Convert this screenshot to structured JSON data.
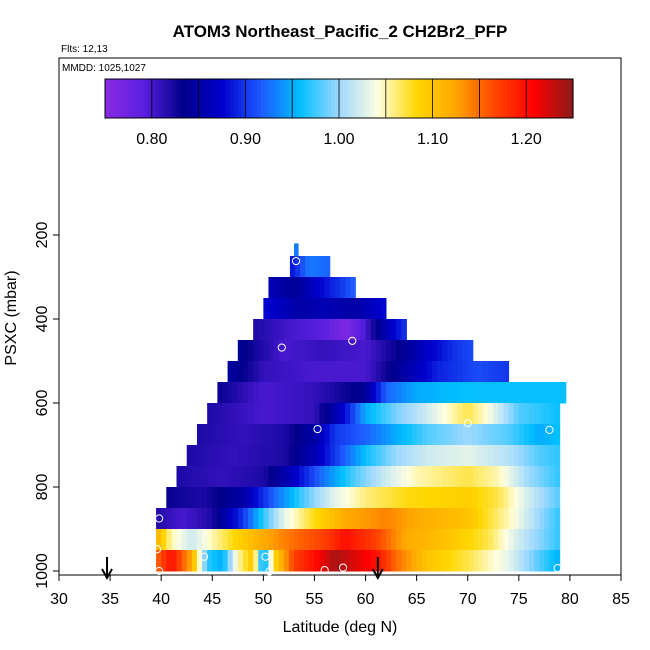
{
  "chart_data": {
    "type": "heatmap",
    "title": "ATOM3 Northeast_Pacific_2 CH2Br2_PFP",
    "flights_label": "Flts: 12,13",
    "mmdd_label": "MMDD: 1025,1027",
    "xlabel": "Latitude (deg N)",
    "ylabel": "PSXC (mbar)",
    "xlim": [
      30,
      85
    ],
    "ylim": [
      1000,
      220
    ],
    "x_ticks": [
      30,
      35,
      40,
      45,
      50,
      55,
      60,
      65,
      70,
      75,
      80,
      85
    ],
    "y_ticks": [
      200,
      400,
      600,
      800,
      1000
    ],
    "colorbar": {
      "range": [
        0.75,
        1.25
      ],
      "ticks": [
        0.8,
        0.9,
        1.0,
        1.1,
        1.2
      ],
      "tick_labels": [
        "0.80",
        "0.90",
        "1.00",
        "1.10",
        "1.20"
      ],
      "colors": [
        "#8a2be2",
        "#5a1fe0",
        "#00008b",
        "#0000cd",
        "#1e5aff",
        "#00bfff",
        "#9ed8ff",
        "#ffffe0",
        "#ffd700",
        "#ffa500",
        "#ff4500",
        "#ff0000",
        "#8b1a1a"
      ],
      "divisions": [
        0.8,
        0.85,
        0.9,
        0.95,
        1.0,
        1.05,
        1.1,
        1.15,
        1.2
      ]
    },
    "rows": [
      {
        "p0": 220,
        "p1": 250,
        "lat0": 53.0,
        "lat1": 53.4,
        "keys": [
          [
            53.0,
            0.93
          ]
        ]
      },
      {
        "p0": 250,
        "p1": 300,
        "lat0": 52.6,
        "lat1": 56.5,
        "keys": [
          [
            52.6,
            0.88
          ],
          [
            54.5,
            0.93
          ],
          [
            56.5,
            0.92
          ]
        ]
      },
      {
        "p0": 300,
        "p1": 350,
        "lat0": 50.5,
        "lat1": 59.0,
        "keys": [
          [
            50.5,
            0.86
          ],
          [
            53.0,
            0.84
          ],
          [
            55.0,
            0.87
          ],
          [
            57.5,
            0.9
          ],
          [
            59.0,
            0.92
          ]
        ]
      },
      {
        "p0": 350,
        "p1": 400,
        "lat0": 50.0,
        "lat1": 62.0,
        "keys": [
          [
            50.0,
            0.88
          ],
          [
            53.5,
            0.85
          ],
          [
            56.0,
            0.86
          ],
          [
            59.0,
            0.85
          ],
          [
            62.0,
            0.88
          ]
        ]
      },
      {
        "p0": 400,
        "p1": 450,
        "lat0": 49.0,
        "lat1": 64.0,
        "keys": [
          [
            49.0,
            0.82
          ],
          [
            53.0,
            0.8
          ],
          [
            56.0,
            0.79
          ],
          [
            58.0,
            0.76
          ],
          [
            60.0,
            0.8
          ],
          [
            62.0,
            0.86
          ],
          [
            64.0,
            0.9
          ]
        ]
      },
      {
        "p0": 450,
        "p1": 500,
        "lat0": 47.5,
        "lat1": 70.5,
        "keys": [
          [
            47.5,
            0.84
          ],
          [
            52.0,
            0.8
          ],
          [
            56.0,
            0.81
          ],
          [
            60.0,
            0.8
          ],
          [
            63.0,
            0.83
          ],
          [
            66.0,
            0.87
          ],
          [
            69.0,
            0.9
          ],
          [
            70.5,
            0.91
          ]
        ]
      },
      {
        "p0": 500,
        "p1": 550,
        "lat0": 46.5,
        "lat1": 74.0,
        "keys": [
          [
            46.5,
            0.85
          ],
          [
            50.0,
            0.81
          ],
          [
            55.0,
            0.8
          ],
          [
            60.0,
            0.8
          ],
          [
            63.0,
            0.84
          ],
          [
            67.0,
            0.89
          ],
          [
            71.0,
            0.91
          ],
          [
            74.0,
            0.9
          ]
        ]
      },
      {
        "p0": 550,
        "p1": 600,
        "lat0": 45.5,
        "lat1": 79.6,
        "keys": [
          [
            45.5,
            0.83
          ],
          [
            50.0,
            0.8
          ],
          [
            55.0,
            0.81
          ],
          [
            60.0,
            0.84
          ],
          [
            62.0,
            0.92
          ],
          [
            65.0,
            0.95
          ],
          [
            70.0,
            0.96
          ],
          [
            75.0,
            0.96
          ],
          [
            79.6,
            0.96
          ]
        ]
      },
      {
        "p0": 600,
        "p1": 650,
        "lat0": 44.5,
        "lat1": 79.0,
        "keys": [
          [
            44.5,
            0.82
          ],
          [
            50.0,
            0.8
          ],
          [
            55.0,
            0.81
          ],
          [
            58.0,
            0.88
          ],
          [
            60.0,
            0.95
          ],
          [
            63.0,
            0.99
          ],
          [
            66.0,
            1.02
          ],
          [
            70.0,
            1.07
          ],
          [
            72.0,
            1.04
          ],
          [
            75.0,
            0.98
          ],
          [
            79.0,
            0.96
          ]
        ]
      },
      {
        "p0": 650,
        "p1": 700,
        "lat0": 43.5,
        "lat1": 79.0,
        "keys": [
          [
            43.5,
            0.82
          ],
          [
            48.0,
            0.81
          ],
          [
            52.0,
            0.82
          ],
          [
            55.0,
            0.85
          ],
          [
            57.0,
            0.9
          ],
          [
            60.0,
            0.92
          ],
          [
            63.0,
            0.95
          ],
          [
            66.0,
            0.98
          ],
          [
            70.0,
            1.0
          ],
          [
            74.0,
            0.98
          ],
          [
            77.0,
            0.95
          ],
          [
            79.0,
            0.96
          ]
        ]
      },
      {
        "p0": 700,
        "p1": 750,
        "lat0": 42.5,
        "lat1": 79.0,
        "keys": [
          [
            42.5,
            0.82
          ],
          [
            47.0,
            0.81
          ],
          [
            52.0,
            0.82
          ],
          [
            55.0,
            0.86
          ],
          [
            58.0,
            0.92
          ],
          [
            60.0,
            0.96
          ],
          [
            63.0,
            1.0
          ],
          [
            66.0,
            1.02
          ],
          [
            70.0,
            1.03
          ],
          [
            74.0,
            1.01
          ],
          [
            77.0,
            0.98
          ],
          [
            79.0,
            0.97
          ]
        ]
      },
      {
        "p0": 750,
        "p1": 800,
        "lat0": 41.5,
        "lat1": 79.0,
        "keys": [
          [
            41.5,
            0.82
          ],
          [
            46.0,
            0.81
          ],
          [
            50.0,
            0.82
          ],
          [
            53.0,
            0.87
          ],
          [
            56.0,
            0.93
          ],
          [
            59.0,
            0.98
          ],
          [
            62.0,
            1.02
          ],
          [
            65.0,
            1.05
          ],
          [
            70.0,
            1.07
          ],
          [
            73.0,
            1.05
          ],
          [
            76.0,
            1.0
          ],
          [
            79.0,
            0.97
          ]
        ]
      },
      {
        "p0": 800,
        "p1": 850,
        "lat0": 40.5,
        "lat1": 79.0,
        "keys": [
          [
            40.5,
            0.83
          ],
          [
            44.0,
            0.82
          ],
          [
            48.0,
            0.85
          ],
          [
            51.0,
            0.92
          ],
          [
            54.0,
            0.98
          ],
          [
            57.0,
            1.03
          ],
          [
            60.0,
            1.06
          ],
          [
            64.0,
            1.08
          ],
          [
            70.0,
            1.09
          ],
          [
            73.0,
            1.07
          ],
          [
            76.0,
            1.02
          ],
          [
            79.0,
            0.98
          ]
        ]
      },
      {
        "p0": 850,
        "p1": 900,
        "lat0": 39.5,
        "lat1": 79.0,
        "keys": [
          [
            39.5,
            0.82
          ],
          [
            42.0,
            0.8
          ],
          [
            45.0,
            0.82
          ],
          [
            48.0,
            0.9
          ],
          [
            50.0,
            0.97
          ],
          [
            52.0,
            1.03
          ],
          [
            55.0,
            1.08
          ],
          [
            58.0,
            1.12
          ],
          [
            62.0,
            1.14
          ],
          [
            65.0,
            1.12
          ],
          [
            70.0,
            1.1
          ],
          [
            74.0,
            1.05
          ],
          [
            77.0,
            1.0
          ],
          [
            79.0,
            0.97
          ]
        ]
      },
      {
        "p0": 900,
        "p1": 950,
        "lat0": 39.5,
        "lat1": 79.0,
        "keys": [
          [
            39.5,
            1.12
          ],
          [
            41.0,
            1.05
          ],
          [
            43.0,
            1.02
          ],
          [
            45.0,
            1.05
          ],
          [
            47.0,
            1.08
          ],
          [
            50.0,
            1.12
          ],
          [
            53.0,
            1.15
          ],
          [
            56.0,
            1.17
          ],
          [
            58.0,
            1.2
          ],
          [
            61.0,
            1.17
          ],
          [
            64.0,
            1.12
          ],
          [
            68.0,
            1.1
          ],
          [
            72.0,
            1.07
          ],
          [
            75.0,
            1.02
          ],
          [
            79.0,
            0.97
          ]
        ]
      },
      {
        "p0": 950,
        "p1": 1000,
        "lat0": 39.5,
        "lat1": 79.0,
        "keys": [
          [
            39.5,
            1.15
          ],
          [
            41.0,
            1.2
          ],
          [
            43.0,
            1.12
          ],
          [
            44.5,
            0.97
          ],
          [
            46.0,
            0.95
          ],
          [
            47.5,
            1.05
          ],
          [
            49.0,
            1.1
          ],
          [
            50.0,
            0.93
          ],
          [
            51.0,
            1.08
          ],
          [
            53.0,
            1.17
          ],
          [
            55.0,
            1.2
          ],
          [
            57.0,
            1.24
          ],
          [
            59.0,
            1.22
          ],
          [
            61.0,
            1.2
          ],
          [
            63.0,
            1.15
          ],
          [
            66.0,
            1.1
          ],
          [
            70.0,
            1.07
          ],
          [
            74.0,
            1.03
          ],
          [
            77.0,
            0.98
          ],
          [
            79.0,
            0.95
          ]
        ]
      }
    ],
    "samples": [
      {
        "lat": 53.2,
        "p": 262
      },
      {
        "lat": 58.7,
        "p": 452
      },
      {
        "lat": 51.8,
        "p": 468
      },
      {
        "lat": 55.3,
        "p": 662
      },
      {
        "lat": 70.0,
        "p": 648
      },
      {
        "lat": 78.0,
        "p": 664
      },
      {
        "lat": 39.8,
        "p": 875
      },
      {
        "lat": 39.6,
        "p": 948
      },
      {
        "lat": 44.2,
        "p": 966
      },
      {
        "lat": 50.2,
        "p": 966
      },
      {
        "lat": 39.8,
        "p": 1000
      },
      {
        "lat": 50.6,
        "p": 1001
      },
      {
        "lat": 56.0,
        "p": 998
      },
      {
        "lat": 57.8,
        "p": 992
      },
      {
        "lat": 78.8,
        "p": 993
      }
    ],
    "arrows": [
      34.7,
      61.2
    ]
  }
}
